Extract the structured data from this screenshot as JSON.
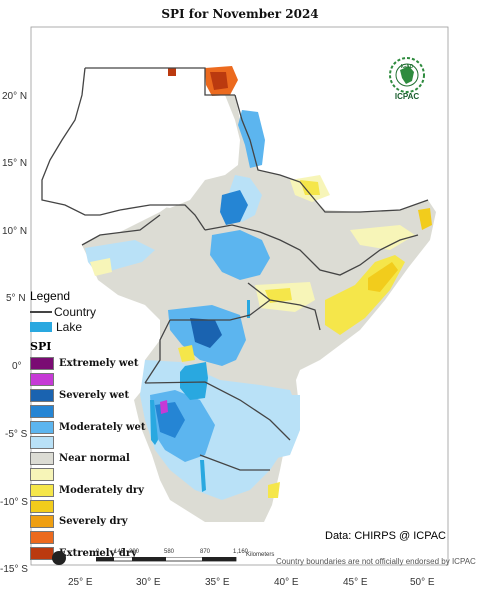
{
  "title": "SPI  for  November 2024",
  "axes": {
    "lat_ticks": [
      "20° N",
      "15° N",
      "10° N",
      "5° N",
      "0°",
      "-5° S",
      "-10° S",
      "-15° S"
    ],
    "lon_ticks": [
      "25° E",
      "30° E",
      "35° E",
      "40° E",
      "45° E",
      "50° E"
    ],
    "lon_range": [
      22,
      52
    ],
    "lat_range": [
      -15,
      23
    ]
  },
  "legend": {
    "heading": "Legend",
    "country_label": "Country",
    "lake_label": "Lake",
    "spi_title": "SPI",
    "classes": [
      {
        "label": "Extremely wet",
        "color": "#7a0b73"
      },
      {
        "label": "",
        "color": "#c63ad6"
      },
      {
        "label": "Severely wet",
        "color": "#1a63b0"
      },
      {
        "label": "",
        "color": "#2585d4"
      },
      {
        "label": "Moderately wet",
        "color": "#5cb5ef"
      },
      {
        "label": "",
        "color": "#b9e1f7"
      },
      {
        "label": "Near normal",
        "color": "#dcdcd4"
      },
      {
        "label": "",
        "color": "#f7f5b8"
      },
      {
        "label": "Moderately dry",
        "color": "#f5e64a"
      },
      {
        "label": "",
        "color": "#f2cc1c"
      },
      {
        "label": "Severely dry",
        "color": "#ef9f12"
      },
      {
        "label": "",
        "color": "#ec6a1e"
      },
      {
        "label": "Extremely dry",
        "color": "#bb3a0f"
      }
    ]
  },
  "logo": {
    "text": "ICPAC",
    "inner_text": "IGAD"
  },
  "credit": "Data: CHIRPS @ ICPAC",
  "disclaimer": "Country boundaries are not officially endorsed by ICPAC",
  "scale_bar": {
    "labels": [
      "0",
      "145",
      "290",
      "580",
      "870",
      "1,160"
    ],
    "unit": "Kilometers"
  },
  "colors": {
    "lake": "#29a8e0",
    "country_line": "#444444",
    "background": "#ffffff"
  }
}
